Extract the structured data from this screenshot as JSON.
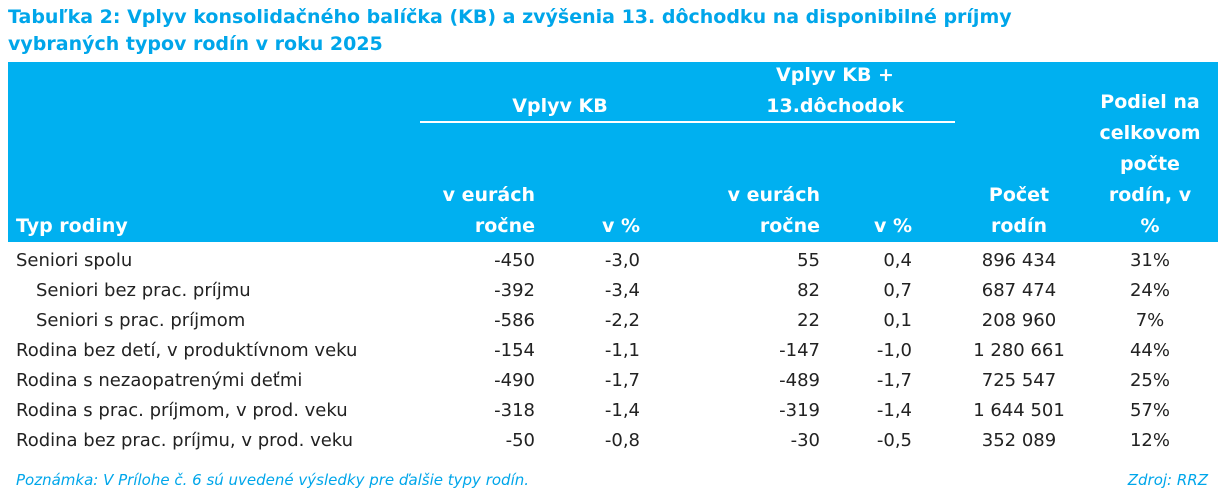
{
  "title": [
    "Tabuľka 2: Vplyv konsolidačného balíčka (KB) a zvýšenia 13. dôchodku na disponibilné príjmy",
    "vybraných typov rodín v roku 2025"
  ],
  "table": {
    "groups": [
      [
        "Vplyv KB"
      ],
      [
        "Vplyv KB +",
        "13.dôchodok"
      ]
    ],
    "columns": [
      [
        "Typ rodiny"
      ],
      [
        "v eurách",
        "ročne"
      ],
      [
        "v %"
      ],
      [
        "v eurách",
        "ročne"
      ],
      [
        "v %"
      ],
      [
        "Počet",
        "rodín"
      ],
      [
        "Podiel na",
        "celkovom",
        "počte",
        "rodín, v",
        "%"
      ]
    ],
    "rows": [
      [
        "Seniori spolu",
        "-450",
        "-3,0",
        "55",
        "0,4",
        "896 434",
        "31%"
      ],
      [
        "Seniori bez prac. príjmu",
        "-392",
        "-3,4",
        "82",
        "0,7",
        "687 474",
        "24%"
      ],
      [
        "Seniori s prac. príjmom",
        "-586",
        "-2,2",
        "22",
        "0,1",
        "208 960",
        "7%"
      ],
      [
        "Rodina bez detí, v produktívnom veku",
        "-154",
        "-1,1",
        "-147",
        "-1,0",
        "1 280 661",
        "44%"
      ],
      [
        "Rodina s nezaopatrenými deťmi",
        "-490",
        "-1,7",
        "-489",
        "-1,7",
        "725 547",
        "25%"
      ],
      [
        "Rodina s prac. príjmom, v prod. veku",
        "-318",
        "-1,4",
        "-319",
        "-1,4",
        "1 644 501",
        "57%"
      ],
      [
        "Rodina bez prac. príjmu, v prod. veku",
        "-50",
        "-0,8",
        "-30",
        "-0,5",
        "352 089",
        "12%"
      ]
    ]
  },
  "footer": {
    "note": "Poznámka: V Prílohe č. 6 sú uvedené výsledky pre ďalšie typy rodín.",
    "source": "Zdroj: RRZ"
  }
}
